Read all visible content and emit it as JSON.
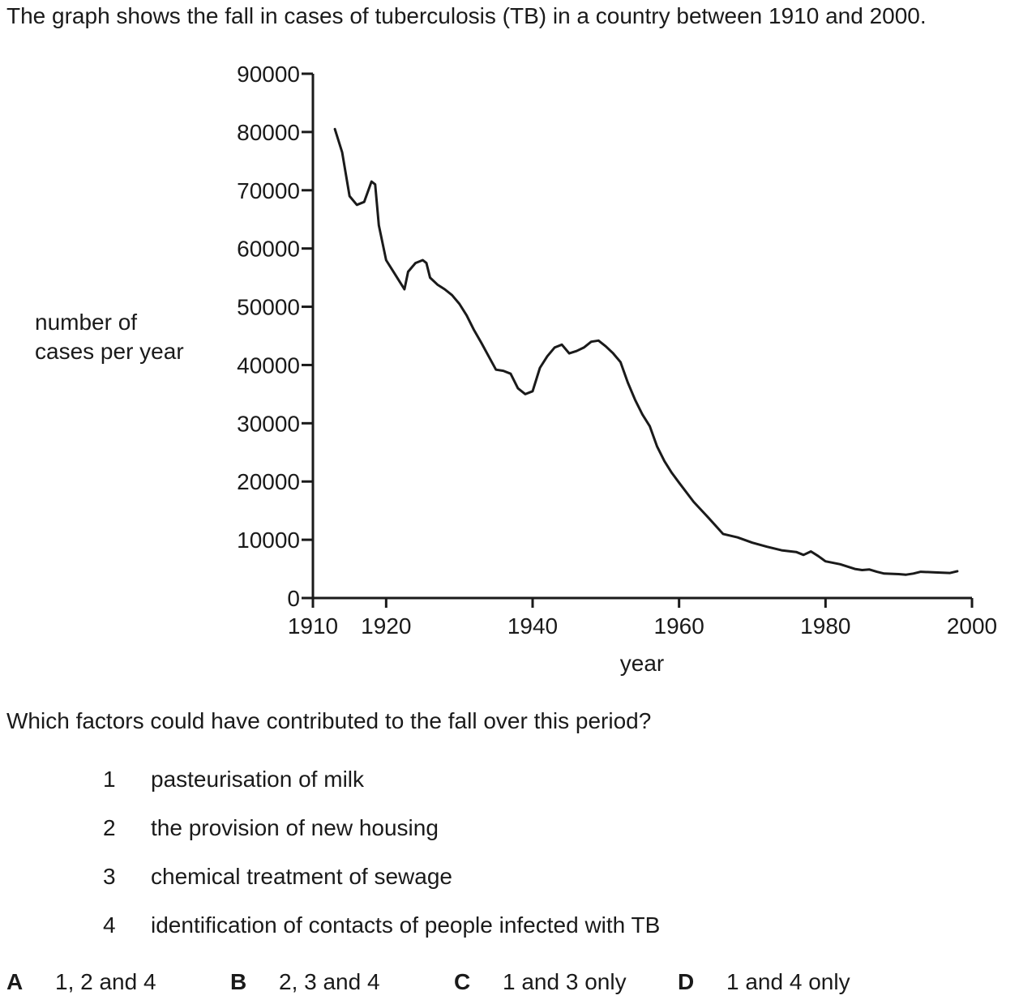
{
  "intro": "The graph shows the fall in cases of tuberculosis (TB) in a country between 1910 and 2000.",
  "question": "Which factors could have contributed to the fall over this period?",
  "factors": [
    {
      "num": "1",
      "text": "pasteurisation of milk"
    },
    {
      "num": "2",
      "text": "the provision of new housing"
    },
    {
      "num": "3",
      "text": "chemical treatment of sewage"
    },
    {
      "num": "4",
      "text": "identification of contacts of people infected with TB"
    }
  ],
  "options": [
    {
      "letter": "A",
      "text": "1, 2 and 4"
    },
    {
      "letter": "B",
      "text": "2, 3 and 4"
    },
    {
      "letter": "C",
      "text": "1 and 3 only"
    },
    {
      "letter": "D",
      "text": "1 and 4 only"
    }
  ],
  "chart_data": {
    "type": "line",
    "xlabel": "year",
    "ylabel_lines": [
      "number of",
      "cases per year"
    ],
    "xlim": [
      1910,
      2000
    ],
    "ylim": [
      0,
      90000
    ],
    "xticks": [
      1910,
      1920,
      1940,
      1960,
      1980,
      2000
    ],
    "xtick_labels": [
      "1910",
      "1920",
      "1940",
      "1960",
      "1980",
      "2000"
    ],
    "yticks": [
      0,
      10000,
      20000,
      30000,
      40000,
      50000,
      60000,
      70000,
      80000,
      90000
    ],
    "ytick_labels": [
      "0",
      "10000",
      "20000",
      "30000",
      "40000",
      "50000",
      "60000",
      "70000",
      "80000",
      "90000"
    ],
    "grid": false,
    "series": [
      {
        "x": [
          1913,
          1914,
          1915,
          1916,
          1917,
          1918,
          1918.5,
          1919,
          1920,
          1921,
          1922,
          1922.5,
          1923,
          1924,
          1925,
          1925.5,
          1926,
          1927,
          1928,
          1929,
          1930,
          1931,
          1932,
          1933,
          1934,
          1935,
          1936,
          1937,
          1938,
          1939,
          1940,
          1941,
          1942,
          1943,
          1944,
          1945,
          1946,
          1947,
          1948,
          1949,
          1950,
          1951,
          1952,
          1953,
          1954,
          1955,
          1956,
          1957,
          1958,
          1959,
          1960,
          1962,
          1964,
          1966,
          1967,
          1968,
          1970,
          1972,
          1974,
          1976,
          1977,
          1978,
          1979,
          1980,
          1982,
          1984,
          1985,
          1986,
          1987,
          1988,
          1990,
          1991,
          1992,
          1993,
          1995,
          1997,
          1998
        ],
        "y": [
          80500,
          76500,
          69000,
          67500,
          68000,
          71500,
          71000,
          64000,
          58000,
          56000,
          54000,
          53000,
          56000,
          57500,
          58000,
          57500,
          55000,
          53800,
          53000,
          52000,
          50500,
          48500,
          46000,
          43800,
          41500,
          39200,
          39000,
          38500,
          36000,
          35000,
          35500,
          39500,
          41500,
          43000,
          43500,
          42000,
          42400,
          43000,
          44000,
          44200,
          43200,
          42000,
          40500,
          37000,
          34000,
          31500,
          29500,
          26000,
          23500,
          21500,
          19800,
          16500,
          13800,
          11000,
          10700,
          10400,
          9500,
          8800,
          8200,
          7900,
          7400,
          8000,
          7200,
          6300,
          5800,
          5000,
          4800,
          4900,
          4500,
          4200,
          4100,
          4000,
          4200,
          4500,
          4400,
          4300,
          4600
        ]
      }
    ]
  }
}
